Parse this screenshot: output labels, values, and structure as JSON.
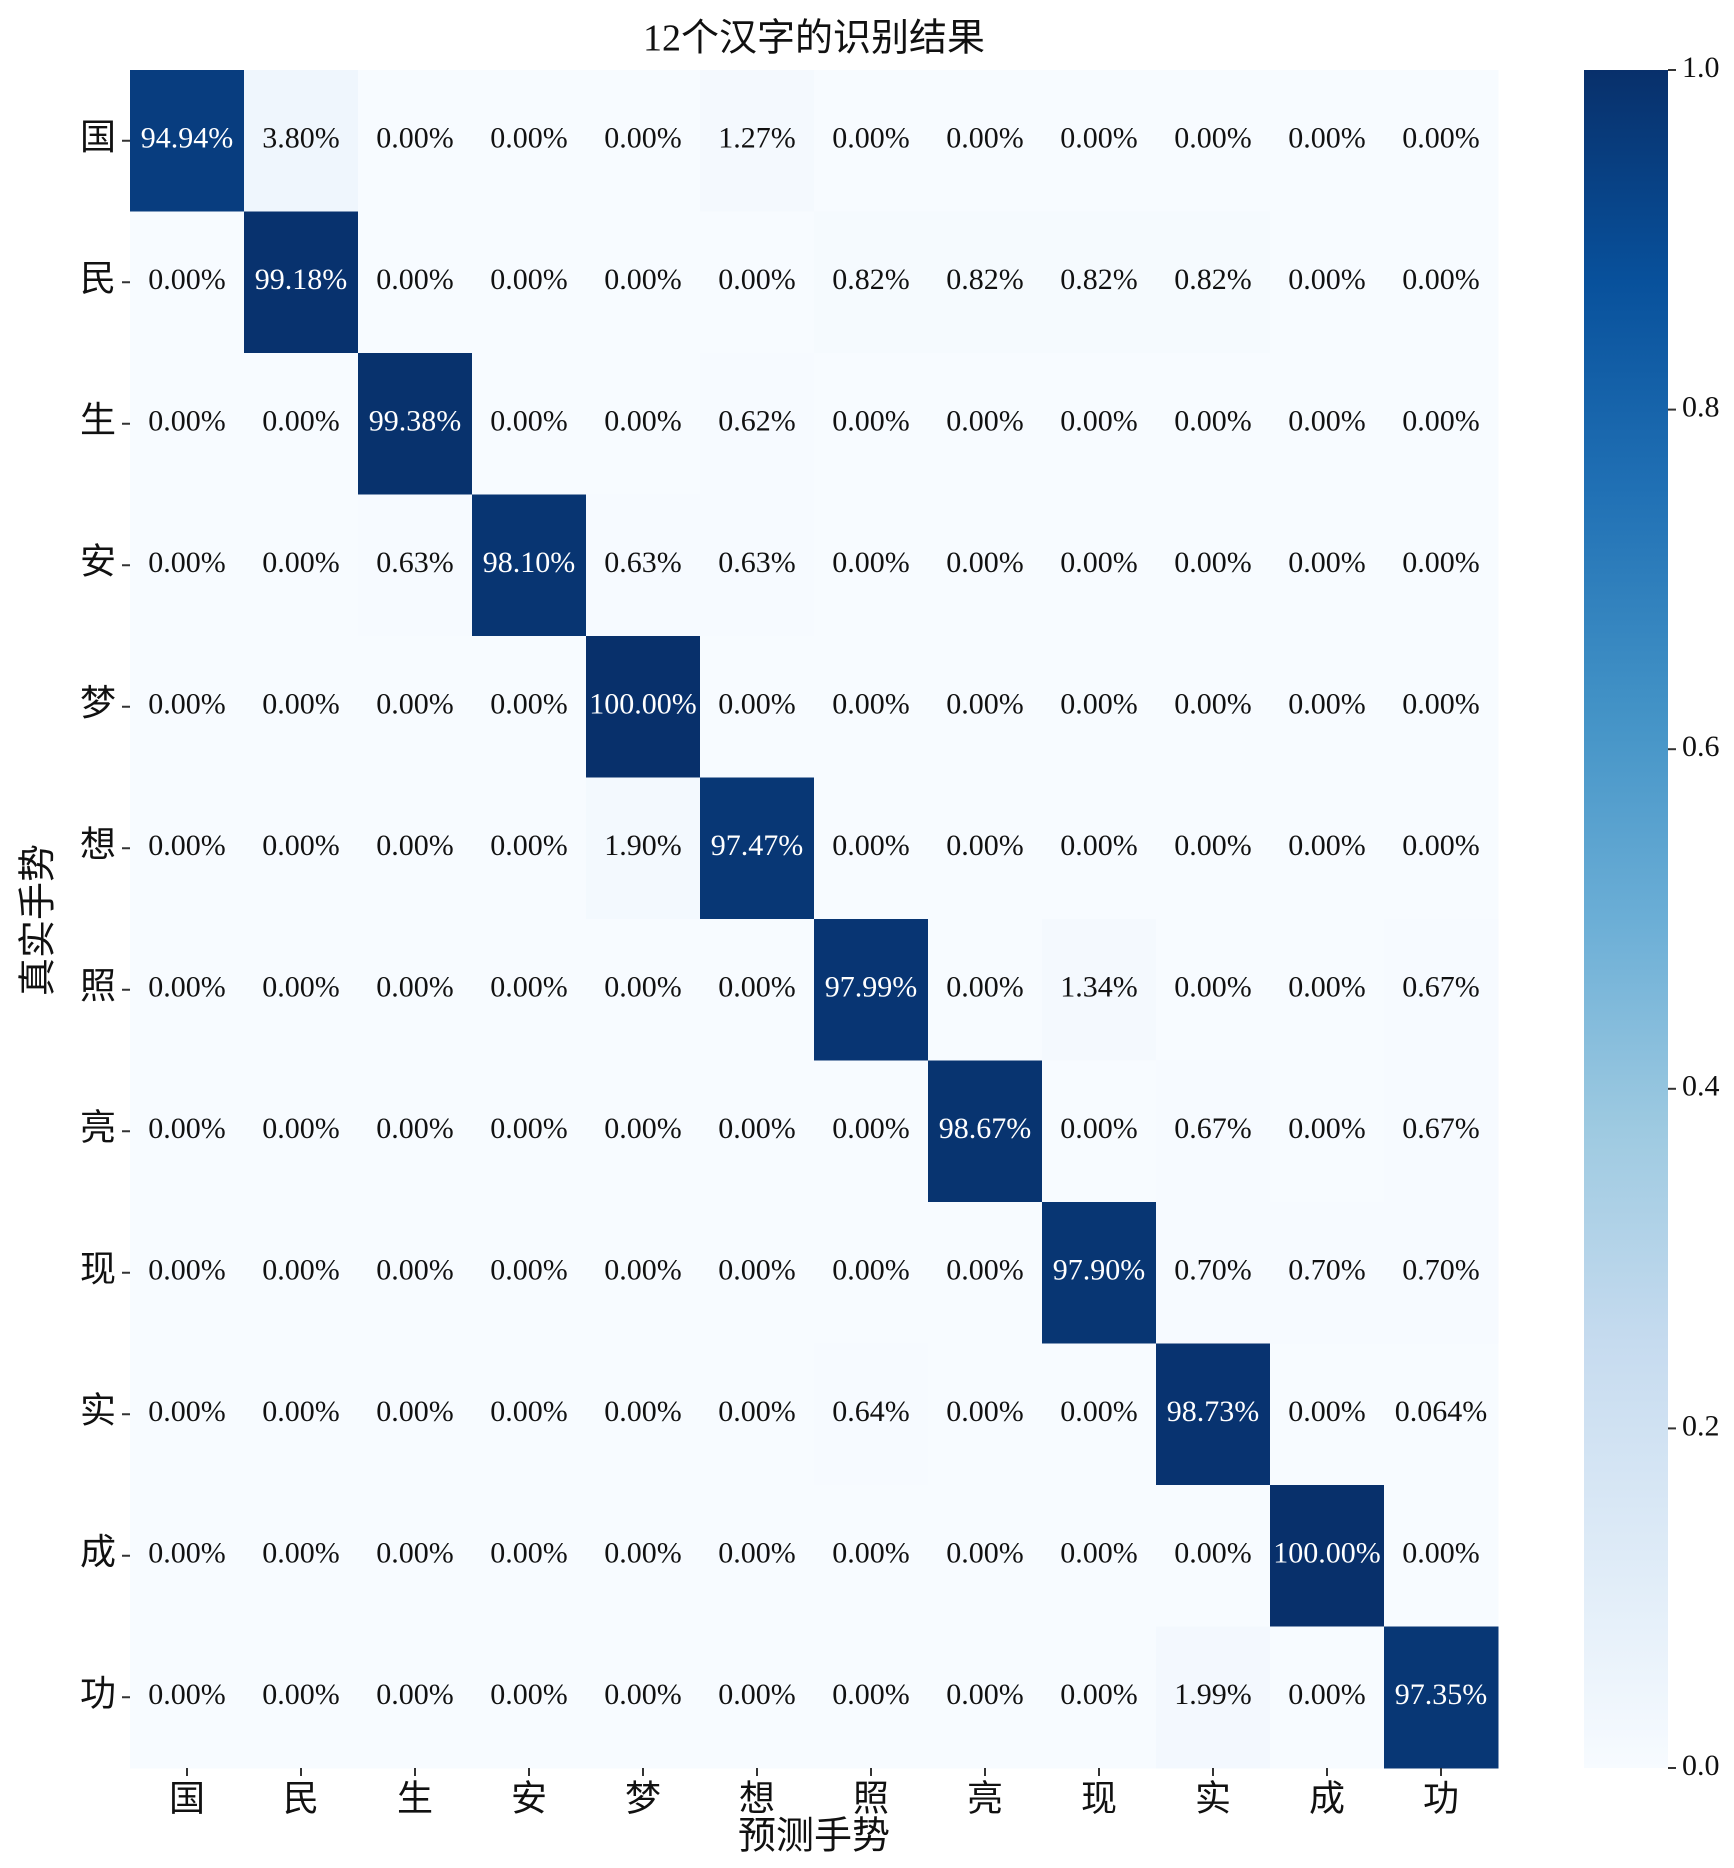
{
  "chart_data": {
    "type": "heatmap",
    "title": "12个汉字的识别结果",
    "xlabel": "预测手势",
    "ylabel": "真实手势",
    "x_categories": [
      "国",
      "民",
      "生",
      "安",
      "梦",
      "想",
      "照",
      "亮",
      "现",
      "实",
      "成",
      "功"
    ],
    "y_categories": [
      "国",
      "民",
      "生",
      "安",
      "梦",
      "想",
      "照",
      "亮",
      "现",
      "实",
      "成",
      "功"
    ],
    "values": [
      [
        0.9494,
        0.038,
        0,
        0,
        0,
        0.0127,
        0,
        0,
        0,
        0,
        0,
        0
      ],
      [
        0,
        0.9918,
        0,
        0,
        0,
        0,
        0.0082,
        0.0082,
        0.0082,
        0.0082,
        0,
        0
      ],
      [
        0,
        0,
        0.9938,
        0,
        0,
        0.0062,
        0,
        0,
        0,
        0,
        0,
        0
      ],
      [
        0,
        0,
        0.0063,
        0.981,
        0.0063,
        0.0063,
        0,
        0,
        0,
        0,
        0,
        0
      ],
      [
        0,
        0,
        0,
        0,
        1,
        0,
        0,
        0,
        0,
        0,
        0,
        0
      ],
      [
        0,
        0,
        0,
        0,
        0.019,
        0.9747,
        0,
        0,
        0,
        0,
        0,
        0
      ],
      [
        0,
        0,
        0,
        0,
        0,
        0,
        0.9799,
        0,
        0.0134,
        0,
        0,
        0.0067
      ],
      [
        0,
        0,
        0,
        0,
        0,
        0,
        0,
        0.9867,
        0,
        0.0067,
        0,
        0.0067
      ],
      [
        0,
        0,
        0,
        0,
        0,
        0,
        0,
        0,
        0.979,
        0.007,
        0.007,
        0.007
      ],
      [
        0,
        0,
        0,
        0,
        0,
        0,
        0.0064,
        0,
        0,
        0.9873,
        0,
        0.00064
      ],
      [
        0,
        0,
        0,
        0,
        0,
        0,
        0,
        0,
        0,
        0,
        1,
        0
      ],
      [
        0,
        0,
        0,
        0,
        0,
        0,
        0,
        0,
        0,
        0.0199,
        0,
        0.9735
      ]
    ],
    "value_labels": [
      [
        "94.94%",
        "3.80%",
        "0.00%",
        "0.00%",
        "0.00%",
        "1.27%",
        "0.00%",
        "0.00%",
        "0.00%",
        "0.00%",
        "0.00%",
        "0.00%"
      ],
      [
        "0.00%",
        "99.18%",
        "0.00%",
        "0.00%",
        "0.00%",
        "0.00%",
        "0.82%",
        "0.82%",
        "0.82%",
        "0.82%",
        "0.00%",
        "0.00%"
      ],
      [
        "0.00%",
        "0.00%",
        "99.38%",
        "0.00%",
        "0.00%",
        "0.62%",
        "0.00%",
        "0.00%",
        "0.00%",
        "0.00%",
        "0.00%",
        "0.00%"
      ],
      [
        "0.00%",
        "0.00%",
        "0.63%",
        "98.10%",
        "0.63%",
        "0.63%",
        "0.00%",
        "0.00%",
        "0.00%",
        "0.00%",
        "0.00%",
        "0.00%"
      ],
      [
        "0.00%",
        "0.00%",
        "0.00%",
        "0.00%",
        "100.00%",
        "0.00%",
        "0.00%",
        "0.00%",
        "0.00%",
        "0.00%",
        "0.00%",
        "0.00%"
      ],
      [
        "0.00%",
        "0.00%",
        "0.00%",
        "0.00%",
        "1.90%",
        "97.47%",
        "0.00%",
        "0.00%",
        "0.00%",
        "0.00%",
        "0.00%",
        "0.00%"
      ],
      [
        "0.00%",
        "0.00%",
        "0.00%",
        "0.00%",
        "0.00%",
        "0.00%",
        "97.99%",
        "0.00%",
        "1.34%",
        "0.00%",
        "0.00%",
        "0.67%"
      ],
      [
        "0.00%",
        "0.00%",
        "0.00%",
        "0.00%",
        "0.00%",
        "0.00%",
        "0.00%",
        "98.67%",
        "0.00%",
        "0.67%",
        "0.00%",
        "0.67%"
      ],
      [
        "0.00%",
        "0.00%",
        "0.00%",
        "0.00%",
        "0.00%",
        "0.00%",
        "0.00%",
        "0.00%",
        "97.90%",
        "0.70%",
        "0.70%",
        "0.70%"
      ],
      [
        "0.00%",
        "0.00%",
        "0.00%",
        "0.00%",
        "0.00%",
        "0.00%",
        "0.64%",
        "0.00%",
        "0.00%",
        "98.73%",
        "0.00%",
        "0.064%"
      ],
      [
        "0.00%",
        "0.00%",
        "0.00%",
        "0.00%",
        "0.00%",
        "0.00%",
        "0.00%",
        "0.00%",
        "0.00%",
        "0.00%",
        "100.00%",
        "0.00%"
      ],
      [
        "0.00%",
        "0.00%",
        "0.00%",
        "0.00%",
        "0.00%",
        "0.00%",
        "0.00%",
        "0.00%",
        "0.00%",
        "1.99%",
        "0.00%",
        "97.35%"
      ]
    ],
    "clim": [
      0,
      1
    ],
    "cticks": [
      {
        "value": 0,
        "label": "0.0"
      },
      0.2,
      0.4,
      0.6,
      0.8,
      {
        "value": 1,
        "label": "1.0"
      }
    ],
    "colormap": [
      "#f7fbff",
      "#deebf7",
      "#c6dbef",
      "#9ecae1",
      "#6baed6",
      "#4292c6",
      "#2171b5",
      "#08519c",
      "#08306b"
    ]
  }
}
